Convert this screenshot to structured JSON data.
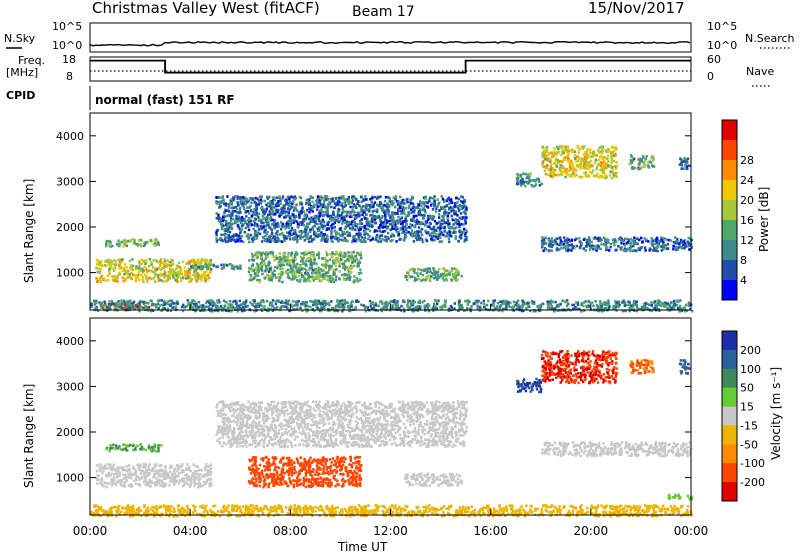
{
  "header": {
    "title": "Christmas Valley West (fitACF)",
    "beam": "Beam 17",
    "date": "15/Nov/2017"
  },
  "panels": {
    "nsky_label": "N.Sky",
    "nsearch_label": "N.Search",
    "freq_label_1": "Freq.",
    "freq_label_2": "[MHz]",
    "nave_label": "Nave",
    "cpid_label": "CPID",
    "cpid_text": "normal (fast) 151 RF",
    "nsky_ticks_left": [
      "10^5",
      "10^0"
    ],
    "nsky_ticks_right": [
      "10^5",
      "10^0"
    ],
    "freq_ticks_left": [
      "18",
      "8"
    ],
    "freq_ticks_right": [
      "60",
      "0"
    ]
  },
  "chart_data": [
    {
      "type": "heatmap",
      "name": "power",
      "ylabel": "Slant Range [km]",
      "xlabel": "Time UT",
      "x_ticks": [
        "00:00",
        "04:00",
        "08:00",
        "12:00",
        "16:00",
        "20:00",
        "00:00"
      ],
      "y_ticks": [
        "1000",
        "2000",
        "3000",
        "4000"
      ],
      "ylim": [
        180,
        4500
      ],
      "xlim": [
        0,
        24
      ],
      "colorbar": {
        "label": "Power [dB]",
        "ticks": [
          "4",
          "8",
          "12",
          "16",
          "20",
          "24",
          "28"
        ],
        "range": [
          0,
          32
        ],
        "colors": [
          "#0000ff",
          "#1f4fa8",
          "#3f8a8a",
          "#4fa86a",
          "#a8c83a",
          "#f0c800",
          "#ff8c00",
          "#ff4500",
          "#e00000"
        ]
      },
      "regions": [
        {
          "t0": 0.6,
          "t1": 2.8,
          "r0": 1600,
          "r1": 1760,
          "level": 13
        },
        {
          "t0": 0.2,
          "t1": 4.8,
          "r0": 820,
          "r1": 1320,
          "level": 18
        },
        {
          "t0": 4.0,
          "t1": 6.0,
          "r0": 1100,
          "r1": 1220,
          "level": 9
        },
        {
          "t0": 6.3,
          "t1": 10.8,
          "r0": 820,
          "r1": 1480,
          "level": 12
        },
        {
          "t0": 12.5,
          "t1": 14.8,
          "r0": 850,
          "r1": 1120,
          "level": 12
        },
        {
          "t0": 5.0,
          "t1": 15.0,
          "r0": 1700,
          "r1": 2700,
          "level": 7
        },
        {
          "t0": 18.0,
          "t1": 21.0,
          "r0": 3100,
          "r1": 3800,
          "level": 18
        },
        {
          "t0": 21.5,
          "t1": 22.5,
          "r0": 3300,
          "r1": 3600,
          "level": 12
        },
        {
          "t0": 23.5,
          "t1": 23.9,
          "r0": 3300,
          "r1": 3600,
          "level": 8
        },
        {
          "t0": 17.0,
          "t1": 18.0,
          "r0": 2900,
          "r1": 3200,
          "level": 10
        },
        {
          "t0": 18.0,
          "t1": 24.0,
          "r0": 1500,
          "r1": 1800,
          "level": 7
        },
        {
          "t0": 0.3,
          "t1": 2.5,
          "r0": 230,
          "r1": 340,
          "level": 28
        },
        {
          "t0": 0.0,
          "t1": 24.0,
          "r0": 180,
          "r1": 420,
          "level": 9
        }
      ]
    },
    {
      "type": "heatmap",
      "name": "velocity",
      "ylabel": "Slant Range [km]",
      "xlabel": "Time UT",
      "x_ticks": [
        "00:00",
        "04:00",
        "08:00",
        "12:00",
        "16:00",
        "20:00",
        "00:00"
      ],
      "y_ticks": [
        "1000",
        "2000",
        "3000",
        "4000"
      ],
      "ylim": [
        180,
        4500
      ],
      "xlim": [
        0,
        24
      ],
      "colorbar": {
        "label": "Velocity [m s⁻¹]",
        "ticks": [
          "200",
          "100",
          "50",
          "15",
          "-15",
          "-50",
          "-100",
          "-200"
        ],
        "colors": [
          "#1a2fa8",
          "#2a5fa0",
          "#3f8a5a",
          "#66cc33",
          "#c8c8c8",
          "#f0b400",
          "#ff8c00",
          "#ff4500",
          "#e00000"
        ]
      },
      "regions": [
        {
          "t0": 0.6,
          "t1": 2.8,
          "r0": 1600,
          "r1": 1760,
          "level": 50
        },
        {
          "t0": 0.2,
          "t1": 4.8,
          "r0": 820,
          "r1": 1320,
          "level": 0
        },
        {
          "t0": 6.3,
          "t1": 10.8,
          "r0": 820,
          "r1": 1480,
          "level": -150
        },
        {
          "t0": 12.5,
          "t1": 14.8,
          "r0": 850,
          "r1": 1120,
          "level": 0
        },
        {
          "t0": 5.0,
          "t1": 15.0,
          "r0": 1700,
          "r1": 2700,
          "level": -10
        },
        {
          "t0": 18.0,
          "t1": 21.0,
          "r0": 3100,
          "r1": 3800,
          "level": -200
        },
        {
          "t0": 17.0,
          "t1": 18.0,
          "r0": 2900,
          "r1": 3200,
          "level": 200
        },
        {
          "t0": 21.5,
          "t1": 22.5,
          "r0": 3300,
          "r1": 3600,
          "level": -100
        },
        {
          "t0": 23.5,
          "t1": 23.9,
          "r0": 3300,
          "r1": 3600,
          "level": 150
        },
        {
          "t0": 18.0,
          "t1": 24.0,
          "r0": 1500,
          "r1": 1800,
          "level": 0
        },
        {
          "t0": 0.0,
          "t1": 24.0,
          "r0": 180,
          "r1": 420,
          "level": -30
        },
        {
          "t0": 23.0,
          "t1": 24.0,
          "r0": 550,
          "r1": 650,
          "level": 40
        }
      ]
    }
  ],
  "frequency_trace": {
    "times": [
      0,
      3.0,
      3.0,
      15.0,
      15.0,
      24
    ],
    "values": [
      16.5,
      16.5,
      11.5,
      11.5,
      16.5,
      16.5
    ]
  },
  "axis": {
    "x_title": "Time UT"
  }
}
